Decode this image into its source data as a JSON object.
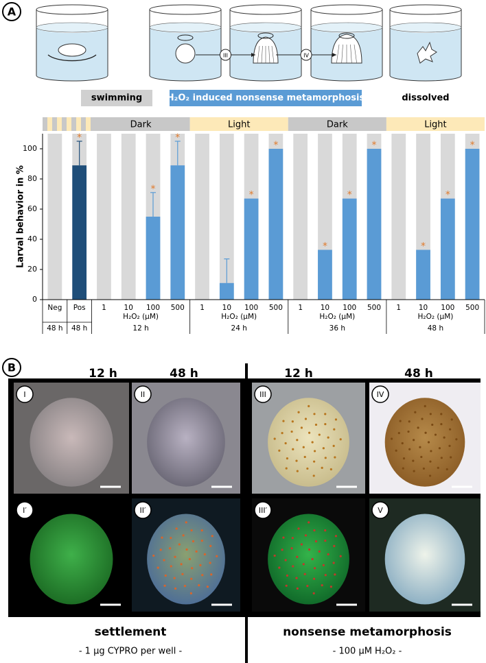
{
  "panel_a": {
    "label": "A",
    "schematic": {
      "stage_markers": [
        "III",
        "IV"
      ],
      "swimming": "swimming",
      "process": "H₂O₂ induced nonsense metamorphosis",
      "dissolved": "dissolved"
    }
  },
  "chart_data": {
    "type": "bar",
    "y_label": "Larval behavior in %",
    "categories": [
      "Neg",
      "Pos",
      "1",
      "10",
      "100",
      "500",
      "1",
      "10",
      "100",
      "500",
      "1",
      "10",
      "100",
      "500",
      "1",
      "10",
      "100",
      "500"
    ],
    "values": [
      0,
      89,
      0,
      0,
      55,
      89,
      0,
      11,
      67,
      100,
      0,
      33,
      67,
      100,
      0,
      33,
      67,
      100
    ],
    "errors": [
      null,
      16,
      null,
      null,
      16,
      16,
      null,
      16,
      null,
      null,
      null,
      null,
      null,
      null,
      null,
      null,
      null,
      null
    ],
    "significant": [
      false,
      true,
      false,
      false,
      true,
      true,
      false,
      false,
      true,
      true,
      false,
      true,
      true,
      true,
      false,
      true,
      true,
      true
    ],
    "significance_marker": "*",
    "colors": [
      "#5a9bd5",
      "#1f4e79",
      "#5a9bd5",
      "#5a9bd5",
      "#5a9bd5",
      "#5a9bd5",
      "#5a9bd5",
      "#5a9bd5",
      "#5a9bd5",
      "#5a9bd5",
      "#5a9bd5",
      "#5a9bd5",
      "#5a9bd5",
      "#5a9bd5",
      "#5a9bd5",
      "#5a9bd5",
      "#5a9bd5",
      "#5a9bd5"
    ],
    "background_color": "#d9d9d9",
    "marker_color": "#e07a2c",
    "ylim": [
      0,
      110
    ],
    "yticks": [
      0,
      20,
      40,
      60,
      80,
      100
    ],
    "x_groups": [
      {
        "label": "48 h",
        "count": 1
      },
      {
        "label": "48 h",
        "count": 1
      },
      {
        "label": "12 h",
        "count": 4,
        "unit": "H₂O₂ (µM)"
      },
      {
        "label": "24 h",
        "count": 4,
        "unit": "H₂O₂ (µM)"
      },
      {
        "label": "36 h",
        "count": 4,
        "unit": "H₂O₂ (µM)"
      },
      {
        "label": "48 h",
        "count": 4,
        "unit": "H₂O₂ (µM)"
      }
    ],
    "phases": [
      {
        "label": null,
        "count": 2,
        "color": "#fde9b8",
        "striped": true
      },
      {
        "label": "Dark",
        "count": 4,
        "color": "#c8c8c8"
      },
      {
        "label": "Light",
        "count": 4,
        "color": "#fde9b8"
      },
      {
        "label": "Dark",
        "count": 4,
        "color": "#c8c8c8"
      },
      {
        "label": "Light",
        "count": 4,
        "color": "#fde9b8"
      }
    ]
  },
  "panel_b": {
    "label": "B",
    "column_headers": [
      "12 h",
      "48 h",
      "12 h",
      "48 h"
    ],
    "images": [
      "I",
      "II",
      "III",
      "IV",
      "I′",
      "II′",
      "III′",
      "V"
    ],
    "captions": [
      {
        "title": "settlement",
        "subtitle": "- 1 µg CYPRO per well -"
      },
      {
        "title": "nonsense metamorphosis",
        "subtitle": "- 100 µM H₂O₂ -"
      }
    ]
  }
}
